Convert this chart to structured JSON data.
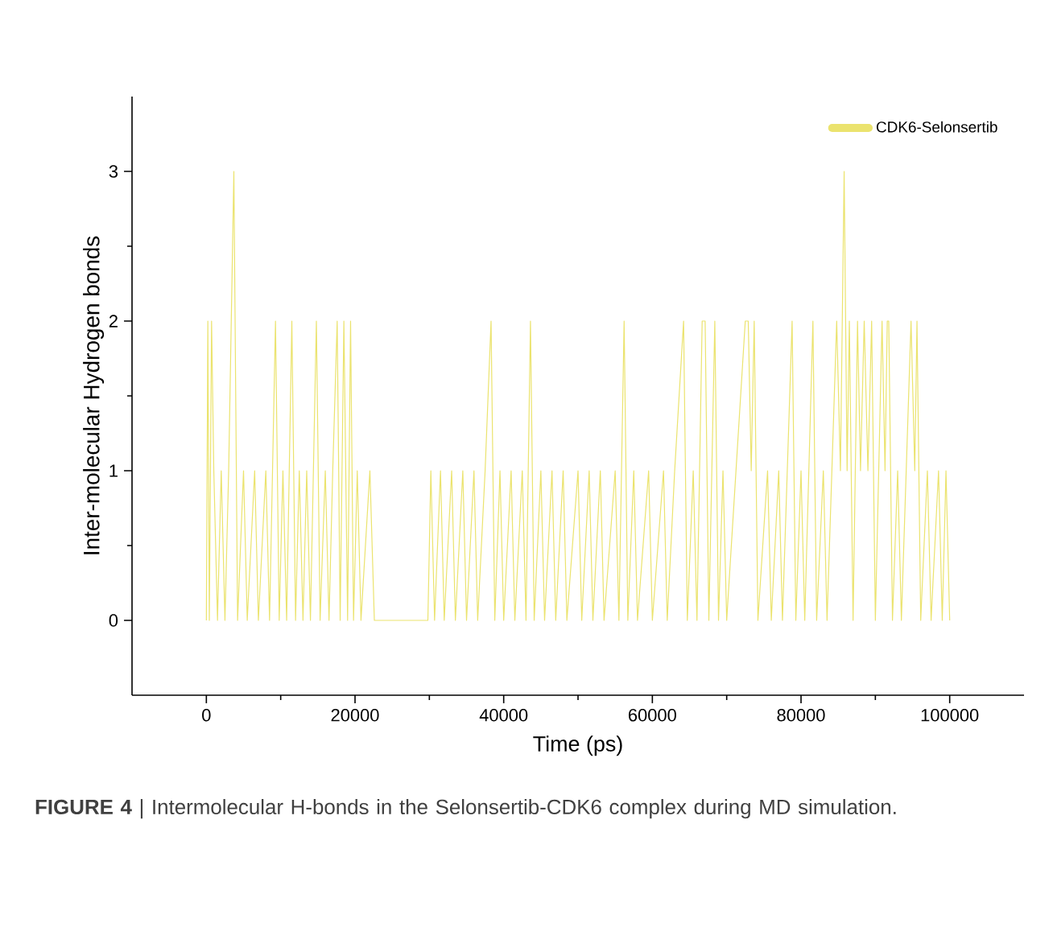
{
  "chart_data": {
    "type": "line",
    "xlabel": "Time (ps)",
    "ylabel": "Inter-molecular Hydrogen bonds",
    "annotations": [
      "**FIGURE 4** | Intermolecular H-bonds in the Selonsertib-CDK6 complex during MD simulation."
    ],
    "xlim": [
      -10000,
      110000
    ],
    "xticks": [
      0,
      20000,
      40000,
      60000,
      80000,
      100000
    ],
    "ylim": [
      -0.5,
      3.5
    ],
    "yticks": [
      0,
      1,
      2,
      3
    ],
    "grid": false,
    "legend": "top right",
    "marker": "none",
    "line_style": "solid",
    "series": [
      {
        "name": "CDK6-Selonsertib",
        "color": "#ebe36e",
        "x": [
          0,
          200,
          400,
          700,
          1000,
          1500,
          2000,
          2500,
          3000,
          3700,
          4200,
          5000,
          5500,
          6500,
          7000,
          8000,
          8500,
          9300,
          9800,
          10300,
          10800,
          11500,
          12000,
          12500,
          13000,
          13500,
          14000,
          14800,
          15300,
          16000,
          16500,
          17000,
          17600,
          18000,
          18500,
          19000,
          19400,
          19800,
          20300,
          20800,
          22000,
          22600,
          29800,
          30200,
          30700,
          31500,
          32000,
          33000,
          33500,
          34500,
          35000,
          36000,
          36500,
          37500,
          38300,
          38800,
          39500,
          40000,
          41000,
          41500,
          42500,
          43000,
          43600,
          44100,
          45000,
          45500,
          46500,
          47000,
          48000,
          48500,
          50000,
          50500,
          51500,
          52000,
          53000,
          53500,
          55000,
          55500,
          56200,
          56700,
          57500,
          58000,
          59500,
          60000,
          61500,
          62000,
          63000,
          64200,
          64700,
          65500,
          66000,
          66700,
          67100,
          67600,
          68400,
          68900,
          69500,
          70000,
          72500,
          72900,
          73300,
          73700,
          74200,
          75500,
          76000,
          77000,
          77500,
          78800,
          79300,
          80000,
          80500,
          81600,
          82100,
          83000,
          83500,
          84800,
          85300,
          85800,
          86200,
          86500,
          87000,
          87600,
          88000,
          88500,
          89000,
          89500,
          90000,
          90900,
          91300,
          91600,
          91800,
          92300,
          93000,
          93500,
          94800,
          95300,
          95600,
          96100,
          97000,
          97500,
          98500,
          99000,
          99500,
          100000
        ],
        "values": [
          0,
          2,
          0,
          2,
          1,
          0,
          1,
          0,
          1,
          3,
          0,
          1,
          0,
          1,
          0,
          1,
          0,
          2,
          0,
          1,
          0,
          2,
          0,
          1,
          0,
          1,
          0,
          2,
          0,
          1,
          0,
          1,
          2,
          0,
          2,
          0,
          2,
          0,
          1,
          0,
          1,
          0,
          0,
          1,
          0,
          1,
          0,
          1,
          0,
          1,
          0,
          1,
          0,
          1,
          2,
          0,
          1,
          0,
          1,
          0,
          1,
          0,
          2,
          0,
          1,
          0,
          1,
          0,
          1,
          0,
          1,
          0,
          1,
          0,
          1,
          0,
          1,
          0,
          2,
          0,
          1,
          0,
          1,
          0,
          1,
          0,
          1,
          2,
          0,
          1,
          0,
          2,
          2,
          0,
          2,
          0,
          1,
          0,
          2,
          2,
          1,
          2,
          0,
          1,
          0,
          1,
          0,
          2,
          0,
          1,
          0,
          2,
          0,
          1,
          0,
          2,
          1,
          3,
          1,
          2,
          0,
          2,
          1,
          2,
          1,
          2,
          0,
          2,
          1,
          2,
          2,
          0,
          1,
          0,
          2,
          1,
          2,
          0,
          1,
          0,
          1,
          0,
          1,
          0
        ]
      }
    ]
  }
}
